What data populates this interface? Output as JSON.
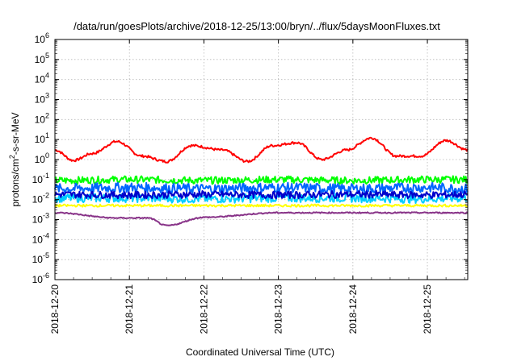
{
  "chart_data": {
    "type": "line",
    "title": "/data/run/goesPlots/archive/2018-12-25/13:00/bryn/../flux/5daysMoonFluxes.txt",
    "xlabel": "Coordinated Universal Time (UTC)",
    "ylabel": {
      "base": "protons/cm",
      "sup": "2",
      "rest": "-s-sr-MeV"
    },
    "y_scale": "log",
    "ylim_exponents": [
      -6,
      6
    ],
    "y_ticks": [
      {
        "base": "10",
        "exp": "-6"
      },
      {
        "base": "10",
        "exp": "-5"
      },
      {
        "base": "10",
        "exp": "-4"
      },
      {
        "base": "10",
        "exp": "-3"
      },
      {
        "base": "10",
        "exp": "-2"
      },
      {
        "base": "10",
        "exp": "-1"
      },
      {
        "base": "10",
        "exp": "0"
      },
      {
        "base": "10",
        "exp": "1"
      },
      {
        "base": "10",
        "exp": "2"
      },
      {
        "base": "10",
        "exp": "3"
      },
      {
        "base": "10",
        "exp": "4"
      },
      {
        "base": "10",
        "exp": "5"
      },
      {
        "base": "10",
        "exp": "6"
      }
    ],
    "x_ticks": [
      "2018-12-20",
      "2018-12-21",
      "2018-12-22",
      "2018-12-23",
      "2018-12-24",
      "2018-12-25"
    ],
    "xlim": [
      "2018-12-20",
      "2018-12-25 13:00"
    ],
    "grid": true,
    "series": [
      {
        "color": "#ff0000",
        "times": [
          "2018-12-20 00:00",
          "2018-12-20 06:00",
          "2018-12-20 12:00",
          "2018-12-20 20:00",
          "2018-12-21 04:00",
          "2018-12-21 12:00",
          "2018-12-21 20:00",
          "2018-12-22 06:00",
          "2018-12-22 14:00",
          "2018-12-22 22:00",
          "2018-12-23 06:00",
          "2018-12-23 14:00",
          "2018-12-23 22:00",
          "2018-12-24 06:00",
          "2018-12-24 14:00",
          "2018-12-24 22:00",
          "2018-12-25 06:00",
          "2018-12-25 13:00"
        ],
        "values": [
          3,
          0.9,
          2,
          8,
          1.5,
          0.8,
          5,
          3,
          0.8,
          5,
          7,
          1,
          3,
          12,
          1.5,
          1.5,
          9,
          3
        ]
      },
      {
        "color": "#00ff00",
        "times": [
          "2018-12-20 00:00",
          "2018-12-21 00:00",
          "2018-12-22 00:00",
          "2018-12-23 00:00",
          "2018-12-24 00:00",
          "2018-12-25 00:00",
          "2018-12-25 13:00"
        ],
        "values": [
          0.09,
          0.1,
          0.09,
          0.1,
          0.09,
          0.1,
          0.1
        ]
      },
      {
        "color": "#00ccff",
        "times": [
          "2018-12-20 00:00",
          "2018-12-21 00:00",
          "2018-12-22 00:00",
          "2018-12-23 00:00",
          "2018-12-24 00:00",
          "2018-12-25 00:00",
          "2018-12-25 13:00"
        ],
        "values": [
          0.012,
          0.012,
          0.011,
          0.012,
          0.012,
          0.011,
          0.012
        ]
      },
      {
        "color": "#0066ff",
        "times": [
          "2018-12-20 00:00",
          "2018-12-21 00:00",
          "2018-12-22 00:00",
          "2018-12-23 00:00",
          "2018-12-24 00:00",
          "2018-12-25 00:00",
          "2018-12-25 13:00"
        ],
        "values": [
          0.035,
          0.04,
          0.035,
          0.04,
          0.035,
          0.04,
          0.035
        ]
      },
      {
        "color": "#0000cc",
        "times": [
          "2018-12-20 00:00",
          "2018-12-21 00:00",
          "2018-12-22 00:00",
          "2018-12-23 00:00",
          "2018-12-24 00:00",
          "2018-12-25 00:00",
          "2018-12-25 13:00"
        ],
        "values": [
          0.018,
          0.017,
          0.018,
          0.017,
          0.018,
          0.017,
          0.018
        ]
      },
      {
        "color": "#ffff00",
        "times": [
          "2018-12-20 00:00",
          "2018-12-21 00:00",
          "2018-12-22 00:00",
          "2018-12-23 00:00",
          "2018-12-24 00:00",
          "2018-12-25 00:00",
          "2018-12-25 13:00"
        ],
        "values": [
          0.005,
          0.005,
          0.005,
          0.005,
          0.005,
          0.005,
          0.005
        ]
      },
      {
        "color": "#883388",
        "times": [
          "2018-12-20 00:00",
          "2018-12-20 20:00",
          "2018-12-21 06:00",
          "2018-12-21 12:00",
          "2018-12-22 00:00",
          "2018-12-23 00:00",
          "2018-12-24 00:00",
          "2018-12-25 00:00",
          "2018-12-25 13:00"
        ],
        "values": [
          0.0022,
          0.0012,
          0.0012,
          0.0005,
          0.0013,
          0.0022,
          0.0022,
          0.0022,
          0.0022
        ]
      }
    ]
  }
}
